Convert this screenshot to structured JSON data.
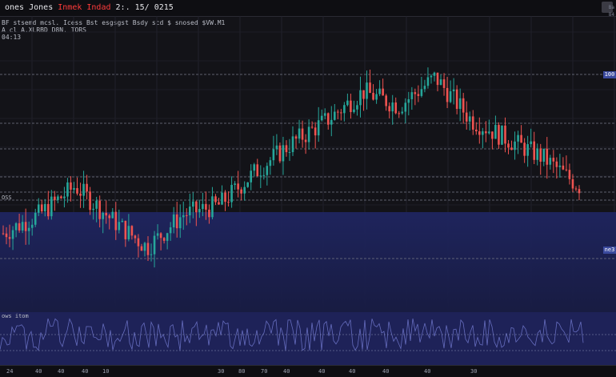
{
  "header": {
    "title_prefix": "ones",
    "title_middle": "Jones",
    "title_accent": "Inmek Indad",
    "title_suffix": "2:. 15/ 0215",
    "legend_lines": [
      "BF  stsemd mcsl.  Icess  Bst  esgsgst Bsdy scd  $ snosed  $VW.M1",
      "A cl A.XLRBD D8N.  TORS",
      "04:13"
    ]
  },
  "oscillator": {
    "label": "ows itom"
  },
  "side": {
    "label": "OSS",
    "corner_right": "Ba",
    "corner_right2": "84"
  },
  "price_tags": {
    "top": "100",
    "bottom": "ne3"
  },
  "time_axis": [
    "24",
    "40",
    "40",
    "40",
    "10",
    "30",
    "80",
    "70",
    "40",
    "40",
    "40",
    "40",
    "40",
    "30"
  ],
  "colors": {
    "up": "#26a69a",
    "down": "#ef5350",
    "background": "#131318",
    "band": "#1c2155",
    "oscillator": "#6d74c9"
  },
  "chart_data": {
    "type": "candlestick",
    "title": "",
    "ylim": [
      0,
      100
    ],
    "series": [
      {
        "x": 0,
        "y": 30
      },
      {
        "x": 10,
        "y": 38
      },
      {
        "x": 20,
        "y": 50
      },
      {
        "x": 30,
        "y": 36
      },
      {
        "x": 40,
        "y": 24
      },
      {
        "x": 50,
        "y": 38
      },
      {
        "x": 60,
        "y": 42
      },
      {
        "x": 70,
        "y": 56
      },
      {
        "x": 80,
        "y": 68
      },
      {
        "x": 90,
        "y": 78
      },
      {
        "x": 100,
        "y": 90
      },
      {
        "x": 110,
        "y": 84
      },
      {
        "x": 120,
        "y": 96
      },
      {
        "x": 130,
        "y": 78
      },
      {
        "x": 140,
        "y": 70
      },
      {
        "x": 150,
        "y": 62
      },
      {
        "x": 160,
        "y": 50
      }
    ]
  }
}
